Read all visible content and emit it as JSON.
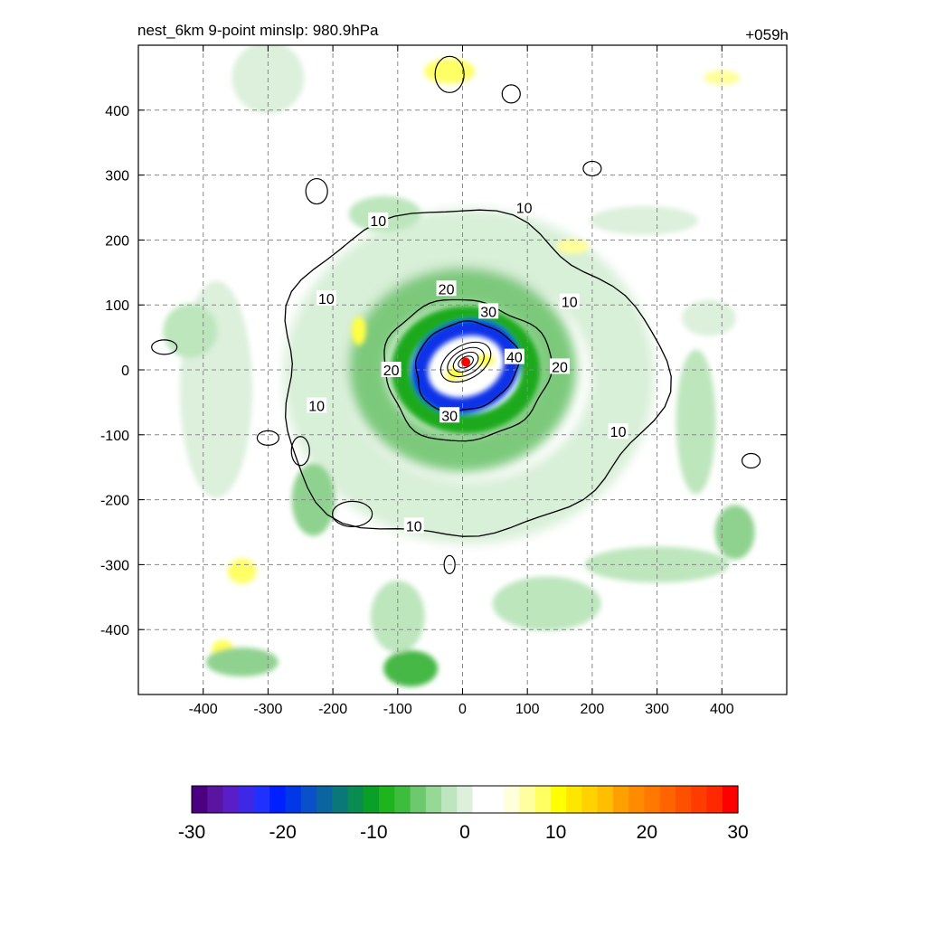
{
  "chart_data": {
    "type": "heatmap",
    "title": "nest_6km  9-point minslp: 980.9hPa",
    "time_label": "+059h",
    "xlim": [
      -500,
      500
    ],
    "ylim": [
      -500,
      500
    ],
    "xticks": [
      -400,
      -300,
      -200,
      -100,
      0,
      100,
      200,
      300,
      400
    ],
    "yticks": [
      -400,
      -300,
      -200,
      -100,
      0,
      100,
      200,
      300,
      400
    ],
    "grid": true,
    "colorbar": {
      "min": -30,
      "max": 30,
      "ticks": [
        -30,
        -20,
        -10,
        0,
        10,
        20,
        30
      ],
      "colors": [
        "#4b0082",
        "#5a14a0",
        "#5a1ec8",
        "#3c28e6",
        "#2030ff",
        "#0020ff",
        "#0038e8",
        "#0a50c8",
        "#0a64a0",
        "#0a7878",
        "#0a8c50",
        "#0aa028",
        "#1eb41e",
        "#3cbe3c",
        "#6ec86e",
        "#96d896",
        "#bee6be",
        "#dcf0dc",
        "#ffffff",
        "#ffffff",
        "#ffffdc",
        "#ffffa0",
        "#ffff64",
        "#ffff00",
        "#ffe600",
        "#ffd200",
        "#ffbe00",
        "#ffa000",
        "#ff8c00",
        "#ff7800",
        "#ff6400",
        "#ff5000",
        "#ff3c00",
        "#ff2800",
        "#ff0000"
      ]
    },
    "center": {
      "x": 5,
      "y": 12
    },
    "contour_levels": [
      10,
      20,
      30,
      40
    ],
    "contour_labels": [
      {
        "text": "10",
        "x": -130,
        "y": 230
      },
      {
        "text": "10",
        "x": 95,
        "y": 250
      },
      {
        "text": "10",
        "x": -210,
        "y": 110
      },
      {
        "text": "10",
        "x": -225,
        "y": -55
      },
      {
        "text": "10",
        "x": 165,
        "y": 105
      },
      {
        "text": "10",
        "x": 240,
        "y": -95
      },
      {
        "text": "10",
        "x": -75,
        "y": -240
      },
      {
        "text": "20",
        "x": -25,
        "y": 125
      },
      {
        "text": "20",
        "x": -110,
        "y": 0
      },
      {
        "text": "20",
        "x": 150,
        "y": 5
      },
      {
        "text": "30",
        "x": 40,
        "y": 90
      },
      {
        "text": "30",
        "x": -20,
        "y": -70
      },
      {
        "text": "40",
        "x": 80,
        "y": 20
      }
    ]
  }
}
